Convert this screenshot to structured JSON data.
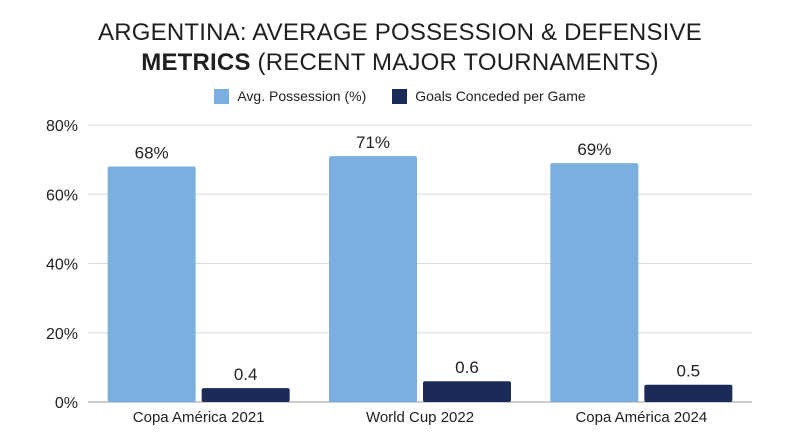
{
  "title": {
    "line1": "ARGENTINA: AVERAGE POSSESSION & DEFENSIVE",
    "line2_bold": "METRICS",
    "line2_rest": " (RECENT MAJOR TOURNAMENTS)"
  },
  "legend": {
    "items": [
      {
        "label": "Avg. Possession (%)",
        "color": "#7aafdf"
      },
      {
        "label": "Goals Conceded per Game",
        "color": "#1b2a57"
      }
    ]
  },
  "chart_data": {
    "type": "bar",
    "title": "ARGENTINA: AVERAGE POSSESSION & DEFENSIVE METRICS (RECENT MAJOR TOURNAMENTS)",
    "categories": [
      "Copa América 2021",
      "World Cup 2022",
      "Copa América 2024"
    ],
    "series": [
      {
        "name": "Avg. Possession (%)",
        "values": [
          68,
          71,
          69
        ],
        "labels": [
          "68%",
          "71%",
          "69%"
        ],
        "color": "#7aafdf"
      },
      {
        "name": "Goals Conceded per Game",
        "values": [
          0.4,
          0.6,
          0.5
        ],
        "labels": [
          "0.4",
          "0.6",
          "0.5"
        ],
        "color": "#1b2a57"
      }
    ],
    "ylim": [
      0,
      80
    ],
    "yticks": [
      0,
      20,
      40,
      60,
      80
    ],
    "ytick_labels": [
      "0%",
      "20%",
      "40%",
      "60%",
      "80%"
    ],
    "grid": true,
    "legend_position": "top-center"
  }
}
